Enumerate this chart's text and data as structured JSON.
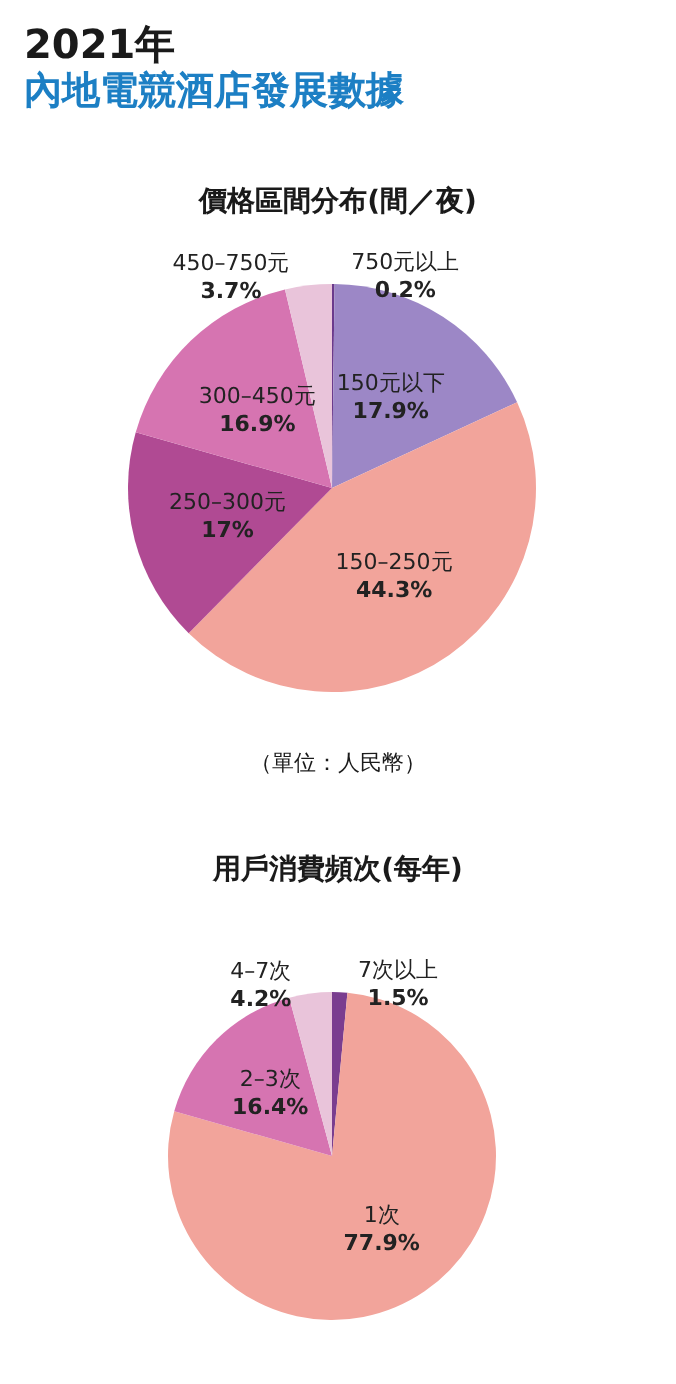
{
  "chart_data": [
    {
      "type": "pie",
      "title": "2021年",
      "subtitle": "內地電競酒店發展數據",
      "annotations": [
        "價格區間分布(間／夜)",
        "（單位：人民幣）"
      ],
      "categories": [
        "750元以上",
        "150元以下",
        "150–250元",
        "250–300元",
        "300–450元",
        "450–750元"
      ],
      "values": [
        0.2,
        17.9,
        44.3,
        17,
        16.9,
        3.7
      ],
      "value_labels": [
        "0.2%",
        "17.9%",
        "44.3%",
        "17%",
        "16.9%",
        "3.7%"
      ],
      "colors": [
        "#6b3a8c",
        "#9c87c6",
        "#f2a49b",
        "#b04a93",
        "#d674b1",
        "#e9c4da"
      ]
    },
    {
      "type": "pie",
      "annotations": [
        "用戶消費頻次(每年)"
      ],
      "categories": [
        "7次以上",
        "1次",
        "2–3次",
        "4–7次"
      ],
      "values": [
        1.5,
        77.9,
        16.4,
        4.2
      ],
      "value_labels": [
        "1.5%",
        "77.9%",
        "16.4%",
        "4.2%"
      ],
      "colors": [
        "#7a3d8f",
        "#f2a49b",
        "#d674b1",
        "#e9c4da"
      ]
    }
  ]
}
